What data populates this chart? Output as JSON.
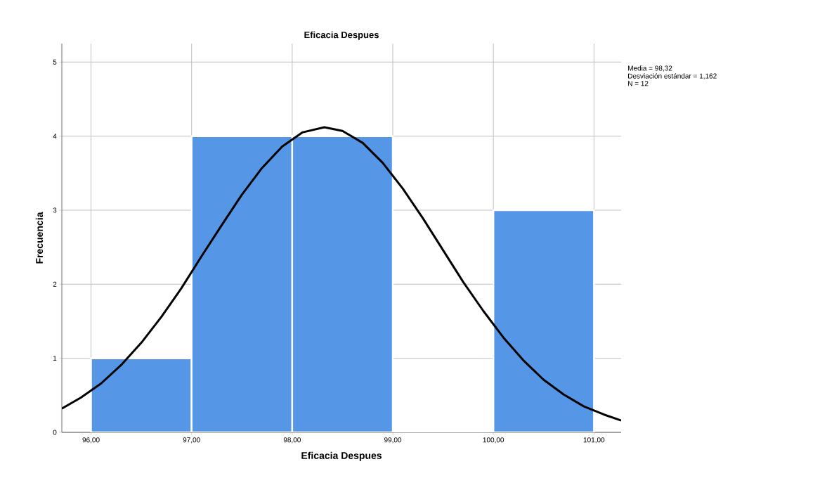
{
  "chart_data": {
    "type": "histogram",
    "title": "Eficacia Despues",
    "xlabel": "Eficacia Despues",
    "ylabel": "Frecuencia",
    "bins": [
      96,
      97,
      98,
      99,
      100,
      101
    ],
    "values": [
      1,
      4,
      4,
      0,
      3
    ],
    "color": "#5596e6",
    "series": [
      {
        "type": "line",
        "color": "#000000",
        "x": [
          95.71,
          95.9,
          96.1,
          96.3,
          96.5,
          96.7,
          96.9,
          97.1,
          97.3,
          97.5,
          97.7,
          97.9,
          98.1,
          98.32,
          98.5,
          98.7,
          98.9,
          99.1,
          99.3,
          99.5,
          99.7,
          99.9,
          100.1,
          100.3,
          100.5,
          100.7,
          100.9,
          101.1,
          101.27
        ],
        "values": [
          0.32,
          0.47,
          0.66,
          0.91,
          1.21,
          1.56,
          1.95,
          2.38,
          2.8,
          3.21,
          3.57,
          3.86,
          4.05,
          4.12,
          4.07,
          3.91,
          3.64,
          3.29,
          2.89,
          2.46,
          2.03,
          1.64,
          1.28,
          0.97,
          0.71,
          0.51,
          0.35,
          0.24,
          0.16
        ]
      }
    ],
    "xlim": [
      95.71,
      101.27
    ],
    "ylim": [
      0,
      5.25
    ],
    "xticks": [
      {
        "value": 96,
        "label": "96,00"
      },
      {
        "value": 97,
        "label": "97,00"
      },
      {
        "value": 98,
        "label": "98,00"
      },
      {
        "value": 99,
        "label": "99,00"
      },
      {
        "value": 100,
        "label": "100,00"
      },
      {
        "value": 101,
        "label": "101,00"
      }
    ],
    "yticks": [
      0,
      1,
      2,
      3,
      4,
      5
    ],
    "grid": true,
    "annotations": [
      "Media = 98,32",
      "Desviación estándar = 1,162",
      "N = 12"
    ]
  }
}
